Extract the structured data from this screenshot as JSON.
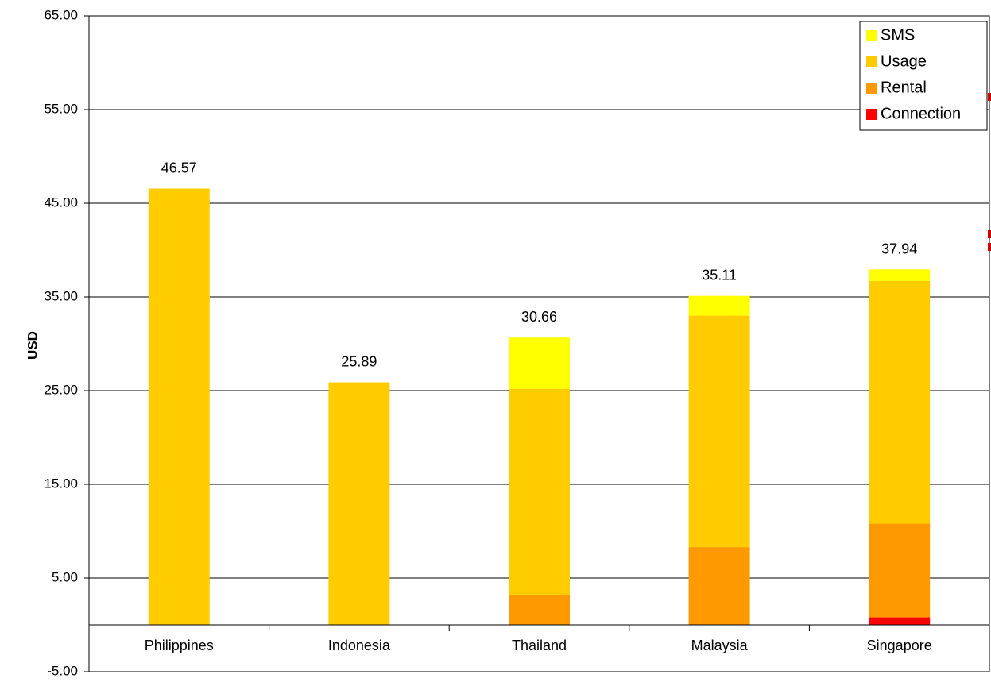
{
  "chart_data": {
    "type": "bar",
    "stacked": true,
    "categories": [
      "Philippines",
      "Indonesia",
      "Thailand",
      "Malaysia",
      "Singapore"
    ],
    "series": [
      {
        "name": "Connection",
        "color": "#FF0000",
        "values": [
          0,
          0,
          0,
          0,
          0.8
        ]
      },
      {
        "name": "Rental",
        "color": "#FF9900",
        "values": [
          0,
          0,
          3.2,
          8.3,
          10.0
        ]
      },
      {
        "name": "Usage",
        "color": "#FFCC00",
        "values": [
          46.57,
          25.89,
          22.0,
          24.7,
          25.9
        ]
      },
      {
        "name": "SMS",
        "color": "#FFFF00",
        "values": [
          0,
          0,
          5.46,
          2.11,
          1.24
        ]
      }
    ],
    "totals": [
      "46.57",
      "25.89",
      "30.66",
      "35.11",
      "37.94"
    ],
    "ylabel": "USD",
    "ylim": [
      -5,
      65
    ],
    "yticks": [
      "65.00",
      "55.00",
      "45.00",
      "35.00",
      "25.00",
      "15.00",
      "5.00",
      "-5.00"
    ],
    "ytick_values": [
      65,
      55,
      45,
      35,
      25,
      15,
      5,
      -5
    ],
    "grid": true,
    "legend": {
      "placement": "top-right",
      "order": [
        "SMS",
        "Usage",
        "Rental",
        "Connection"
      ]
    }
  }
}
